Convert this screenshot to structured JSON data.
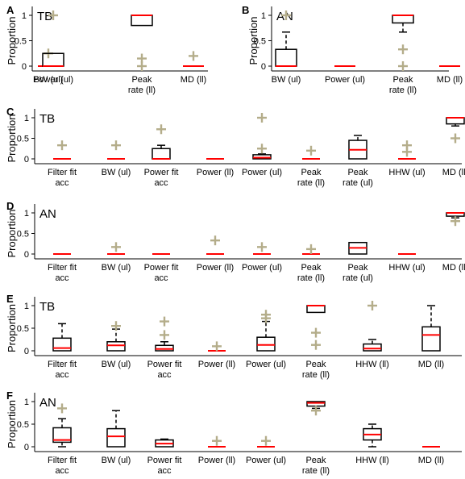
{
  "colors": {
    "box": "#000000",
    "median": "#ff0000",
    "outlier": "#b4ad8a"
  },
  "chart_data": [
    {
      "panel": "A",
      "title": "TB",
      "type": "boxplot",
      "ylabel": "Proportion",
      "ylim": [
        0,
        1
      ],
      "yticks": [
        "0",
        "0.5",
        "1"
      ],
      "categories": [
        "BW (ul)",
        "Power (ul)",
        "Peak\nrate (ll)",
        "MD (ll)"
      ],
      "boxes": [
        {
          "q1": 0,
          "median": 0,
          "q3": 0,
          "whisker_low": 0,
          "whisker_high": 0,
          "outliers": [
            0.25
          ]
        },
        {
          "q1": 0,
          "median": 0,
          "q3": 0.25,
          "whisker_low": 0,
          "whisker_high": 0.25,
          "outliers": [
            1.0
          ]
        },
        {
          "q1": 0.8,
          "median": 1.0,
          "q3": 1.0,
          "whisker_low": 0.8,
          "whisker_high": 1.0,
          "outliers": [
            0.15,
            0.0
          ]
        },
        {
          "q1": 0,
          "median": 0,
          "q3": 0,
          "whisker_low": 0,
          "whisker_high": 0,
          "outliers": [
            0.2
          ]
        }
      ]
    },
    {
      "panel": "B",
      "title": "AN",
      "type": "boxplot",
      "ylabel": "Proportion",
      "ylim": [
        0,
        1
      ],
      "yticks": [
        "0",
        "0.5",
        "1"
      ],
      "categories": [
        "BW (ul)",
        "Power (ul)",
        "Peak\nrate (ll)",
        "MD (ll)"
      ],
      "boxes": [
        {
          "q1": 0,
          "median": 0,
          "q3": 0.33,
          "whisker_low": 0,
          "whisker_high": 0.67,
          "outliers": [
            1.0
          ]
        },
        {
          "q1": 0,
          "median": 0,
          "q3": 0,
          "whisker_low": 0,
          "whisker_high": 0,
          "outliers": []
        },
        {
          "q1": 0.85,
          "median": 1.0,
          "q3": 1.0,
          "whisker_low": 0.67,
          "whisker_high": 1.0,
          "outliers": [
            0.33,
            0.0
          ]
        },
        {
          "q1": 0,
          "median": 0,
          "q3": 0,
          "whisker_low": 0,
          "whisker_high": 0,
          "outliers": []
        }
      ]
    },
    {
      "panel": "C",
      "title": "TB",
      "type": "boxplot",
      "ylabel": "Proportion",
      "ylim": [
        0,
        1
      ],
      "yticks": [
        "0",
        "0.5",
        "1"
      ],
      "categories": [
        "Filter fit\nacc",
        "BW (ul)",
        "Power fit\nacc",
        "Power (ll)",
        "Power (ul)",
        "Peak\nrate (ll)",
        "Peak\nrate (ul)",
        "HHW (ul)",
        "MD (ll)"
      ],
      "boxes": [
        {
          "q1": 0,
          "median": 0,
          "q3": 0,
          "whisker_low": 0,
          "whisker_high": 0,
          "outliers": [
            0.33
          ]
        },
        {
          "q1": 0,
          "median": 0,
          "q3": 0,
          "whisker_low": 0,
          "whisker_high": 0,
          "outliers": [
            0.33
          ]
        },
        {
          "q1": 0,
          "median": 0,
          "q3": 0.25,
          "whisker_low": 0,
          "whisker_high": 0.33,
          "outliers": [
            0.72
          ]
        },
        {
          "q1": 0,
          "median": 0,
          "q3": 0,
          "whisker_low": 0,
          "whisker_high": 0,
          "outliers": []
        },
        {
          "q1": 0,
          "median": 0.03,
          "q3": 0.1,
          "whisker_low": 0,
          "whisker_high": 0.12,
          "outliers": [
            1.0,
            0.25
          ]
        },
        {
          "q1": 0,
          "median": 0,
          "q3": 0,
          "whisker_low": 0,
          "whisker_high": 0,
          "outliers": [
            0.2
          ]
        },
        {
          "q1": 0,
          "median": 0.22,
          "q3": 0.45,
          "whisker_low": 0,
          "whisker_high": 0.57,
          "outliers": []
        },
        {
          "q1": 0,
          "median": 0,
          "q3": 0,
          "whisker_low": 0,
          "whisker_high": 0,
          "outliers": [
            0.33,
            0.17
          ]
        },
        {
          "q1": 0.85,
          "median": 1.0,
          "q3": 1.0,
          "whisker_low": 0.8,
          "whisker_high": 1.0,
          "outliers": [
            0.5
          ]
        }
      ]
    },
    {
      "panel": "D",
      "title": "AN",
      "type": "boxplot",
      "ylabel": "Proportion",
      "ylim": [
        0,
        1
      ],
      "yticks": [
        "0",
        "0.5",
        "1"
      ],
      "categories": [
        "Filter fit\nacc",
        "BW (ul)",
        "Power fit\nacc",
        "Power (ll)",
        "Power (ul)",
        "Peak\nrate (ll)",
        "Peak\nrate (ul)",
        "HHW (ul)",
        "MD (ll)"
      ],
      "boxes": [
        {
          "q1": 0,
          "median": 0,
          "q3": 0,
          "whisker_low": 0,
          "whisker_high": 0,
          "outliers": []
        },
        {
          "q1": 0,
          "median": 0,
          "q3": 0,
          "whisker_low": 0,
          "whisker_high": 0,
          "outliers": [
            0.17
          ]
        },
        {
          "q1": 0,
          "median": 0,
          "q3": 0,
          "whisker_low": 0,
          "whisker_high": 0,
          "outliers": []
        },
        {
          "q1": 0,
          "median": 0,
          "q3": 0,
          "whisker_low": 0,
          "whisker_high": 0,
          "outliers": [
            0.33
          ]
        },
        {
          "q1": 0,
          "median": 0,
          "q3": 0,
          "whisker_low": 0,
          "whisker_high": 0,
          "outliers": [
            0.17
          ]
        },
        {
          "q1": 0,
          "median": 0,
          "q3": 0,
          "whisker_low": 0,
          "whisker_high": 0,
          "outliers": [
            0.12
          ]
        },
        {
          "q1": 0,
          "median": 0.15,
          "q3": 0.28,
          "whisker_low": 0,
          "whisker_high": 0.28,
          "outliers": []
        },
        {
          "q1": 0,
          "median": 0,
          "q3": 0,
          "whisker_low": 0,
          "whisker_high": 0,
          "outliers": []
        },
        {
          "q1": 0.92,
          "median": 1.0,
          "q3": 1.0,
          "whisker_low": 0.88,
          "whisker_high": 1.0,
          "outliers": [
            0.8
          ]
        }
      ]
    },
    {
      "panel": "E",
      "title": "TB",
      "type": "boxplot",
      "ylabel": "Proportion",
      "ylim": [
        0,
        1
      ],
      "yticks": [
        "0",
        "0.5",
        "1"
      ],
      "categories": [
        "Filter fit\nacc",
        "BW (ul)",
        "Power fit\nacc",
        "Power (ll)",
        "Power (ul)",
        "Peak\nrate (ll)",
        "HHW (ll)",
        "MD (ll)"
      ],
      "boxes": [
        {
          "q1": 0,
          "median": 0.06,
          "q3": 0.28,
          "whisker_low": 0,
          "whisker_high": 0.6,
          "outliers": []
        },
        {
          "q1": 0,
          "median": 0.12,
          "q3": 0.2,
          "whisker_low": 0,
          "whisker_high": 0.48,
          "outliers": [
            0.55
          ]
        },
        {
          "q1": 0,
          "median": 0.04,
          "q3": 0.12,
          "whisker_low": 0,
          "whisker_high": 0.2,
          "outliers": [
            0.65,
            0.35
          ]
        },
        {
          "q1": 0,
          "median": 0,
          "q3": 0,
          "whisker_low": 0,
          "whisker_high": 0,
          "outliers": [
            0.1
          ]
        },
        {
          "q1": 0,
          "median": 0.13,
          "q3": 0.3,
          "whisker_low": 0,
          "whisker_high": 0.65,
          "outliers": [
            0.8,
            0.72
          ]
        },
        {
          "q1": 0.85,
          "median": 1.0,
          "q3": 1.0,
          "whisker_low": 0.85,
          "whisker_high": 1.0,
          "outliers": [
            0.4,
            0.13
          ]
        },
        {
          "q1": 0,
          "median": 0.05,
          "q3": 0.15,
          "whisker_low": 0,
          "whisker_high": 0.25,
          "outliers": [
            1.0
          ]
        },
        {
          "q1": 0,
          "median": 0.35,
          "q3": 0.53,
          "whisker_low": 0,
          "whisker_high": 1.0,
          "outliers": []
        }
      ]
    },
    {
      "panel": "F",
      "title": "AN",
      "type": "boxplot",
      "ylabel": "Proportion",
      "ylim": [
        0,
        1
      ],
      "yticks": [
        "0",
        "0.5",
        "1"
      ],
      "categories": [
        "Filter fit\nacc",
        "BW (ul)",
        "Power fit\nacc",
        "Power (ll)",
        "Power (ul)",
        "Peak\nrate (ll)",
        "HHW (ll)",
        "MD (ll)"
      ],
      "boxes": [
        {
          "q1": 0.1,
          "median": 0.15,
          "q3": 0.42,
          "whisker_low": 0,
          "whisker_high": 0.62,
          "outliers": [
            0.85
          ]
        },
        {
          "q1": 0,
          "median": 0.23,
          "q3": 0.4,
          "whisker_low": 0,
          "whisker_high": 0.8,
          "outliers": []
        },
        {
          "q1": 0,
          "median": 0.07,
          "q3": 0.15,
          "whisker_low": 0,
          "whisker_high": 0.17,
          "outliers": []
        },
        {
          "q1": 0,
          "median": 0,
          "q3": 0,
          "whisker_low": 0,
          "whisker_high": 0,
          "outliers": [
            0.13
          ]
        },
        {
          "q1": 0,
          "median": 0,
          "q3": 0,
          "whisker_low": 0,
          "whisker_high": 0,
          "outliers": [
            0.13
          ]
        },
        {
          "q1": 0.9,
          "median": 0.97,
          "q3": 1.0,
          "whisker_low": 0.85,
          "whisker_high": 1.0,
          "outliers": [
            0.8
          ]
        },
        {
          "q1": 0.15,
          "median": 0.27,
          "q3": 0.4,
          "whisker_low": 0,
          "whisker_high": 0.5,
          "outliers": []
        },
        {
          "q1": 0,
          "median": 0,
          "q3": 0,
          "whisker_low": 0,
          "whisker_high": 0,
          "outliers": []
        }
      ]
    }
  ]
}
